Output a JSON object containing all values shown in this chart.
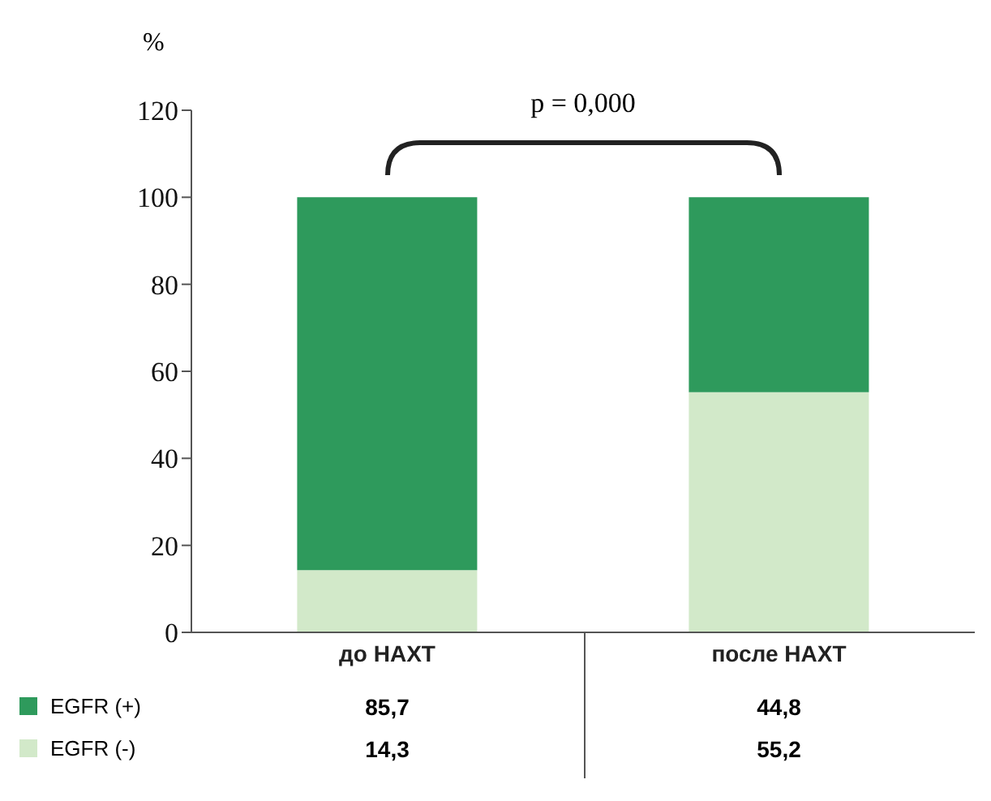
{
  "chart_data": {
    "type": "bar",
    "stacked": true,
    "ylabel": "%",
    "categories": [
      "до НАХТ",
      "после НАХТ"
    ],
    "series": [
      {
        "name": "EGFR (-)",
        "color": "#d2e9c9",
        "values": [
          14.3,
          55.2
        ],
        "value_labels": [
          "14,3",
          "55,2"
        ]
      },
      {
        "name": "EGFR (+)",
        "color": "#2e9a5c",
        "values": [
          85.7,
          44.8
        ],
        "value_labels": [
          "85,7",
          "44,8"
        ]
      }
    ],
    "ylim": [
      0,
      120
    ],
    "yticks": [
      0,
      20,
      40,
      60,
      80,
      100,
      120
    ],
    "grid": false,
    "legend": "bottom left",
    "annotations": [
      "p = 0,000"
    ]
  }
}
